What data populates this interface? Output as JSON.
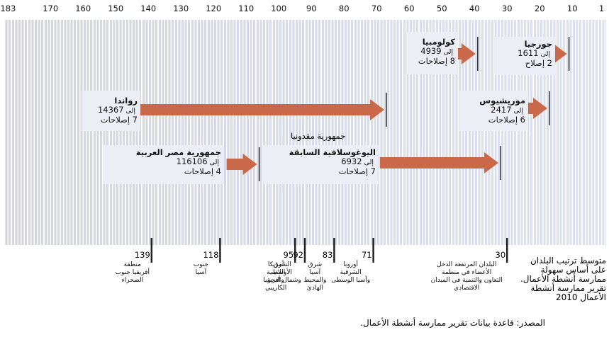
{
  "axis": {
    "ticks": [
      183,
      170,
      160,
      150,
      140,
      130,
      120,
      110,
      100,
      90,
      80,
      70,
      60,
      50,
      40,
      30,
      20,
      10,
      1
    ]
  },
  "economies": [
    {
      "name": "جورجيا",
      "from": 16,
      "connector": "إلى",
      "to": 11,
      "reforms": "2 إصلاح"
    },
    {
      "name": "كولومبيا",
      "from": 49,
      "connector": "إلى",
      "to": 39,
      "reforms": "8 إصلاحات"
    },
    {
      "name": "رواندا",
      "from": 143,
      "connector": "إلى",
      "to": 67,
      "reforms": "7 إصلاحات"
    },
    {
      "name": "موريشيوس",
      "from": 24,
      "connector": "إلى",
      "to": 17,
      "reforms": "6 إصلاحات"
    },
    {
      "name": "جمهورية مصر العربية",
      "from": 116,
      "connector": "إلى",
      "to": 106,
      "reforms": "4 إصلاحات"
    },
    {
      "title": "جمهورية مقدونيا",
      "name": "اليوغوسلافية السابقة",
      "from": 69,
      "connector": "إلى",
      "to": 32,
      "reforms": "7 إصلاحات"
    }
  ],
  "regions": [
    {
      "rank": 139,
      "lines": [
        "منطقة",
        "أفريقيا جنوب",
        "الصحراء"
      ]
    },
    {
      "rank": 118,
      "lines": [
        "جنوب",
        "آسيا"
      ]
    },
    {
      "rank": 95,
      "lines": [
        "أمريكا",
        "اللاتينية",
        "والبحر",
        "الكاريبي"
      ]
    },
    {
      "rank": 92,
      "lines": [
        "الشرق",
        "الأوسط",
        "وشمال أفريقيا"
      ]
    },
    {
      "rank": 83,
      "lines": [
        "شرق",
        "آسيا",
        "والمحيط",
        "الهادئ"
      ]
    },
    {
      "rank": 71,
      "lines": [
        "أوروبا",
        "الشرقية",
        "وآسيا الوسطى"
      ]
    },
    {
      "rank": 30,
      "lines": [
        "البلدان المرتفعة الدخل",
        "الأعضاء في منظمة",
        "التعاون والتنمية في الميدان",
        "الاقتصادي"
      ]
    }
  ],
  "legend": [
    "متوسط ترتيب البلدان",
    "على أساس سهولة",
    "ممارسة أنشطة الأعمال."
  ],
  "note": [
    "تقرير ممارسة أنشطة",
    "الأعمال 2010"
  ],
  "source": "المصدر: قاعدة بيانات تقرير ممارسة أنشطة الأعمال."
}
